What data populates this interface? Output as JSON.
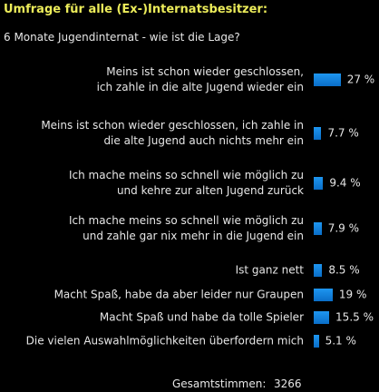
{
  "chart_data": {
    "type": "hbar",
    "title": "Umfrage für alle (Ex-)Internatsbesitzer:",
    "subtitle": "6 Monate Jugendinternat - wie ist die Lage?",
    "categories": [
      "Meins ist schon wieder geschlossen,\nich zahle in die alte Jugend wieder ein",
      "Meins ist schon wieder geschlossen, ich zahle in\ndie alte Jugend auch nichts mehr ein",
      "Ich mache meins so schnell wie möglich zu\nund kehre zur alten Jugend zurück",
      "Ich mache meins so schnell wie möglich zu\nund zahle gar nix mehr in die Jugend ein",
      "Ist ganz nett",
      "Macht Spaß, habe da aber leider nur Graupen",
      "Macht Spaß und habe da tolle Spieler",
      "Die vielen Auswahlmöglichkeiten überfordern mich"
    ],
    "values": [
      27,
      7.7,
      9.4,
      7.9,
      8.5,
      19,
      15.5,
      5.1
    ],
    "value_labels": [
      "27 %",
      "7.7 %",
      "9.4 %",
      "7.9 %",
      "8.5 %",
      "19 %",
      "15.5 %",
      "5.1 %"
    ],
    "color": "#1e96f0",
    "xlim": [
      0,
      100
    ],
    "total_label": "Gesamtstimmen:",
    "total": 3266
  }
}
